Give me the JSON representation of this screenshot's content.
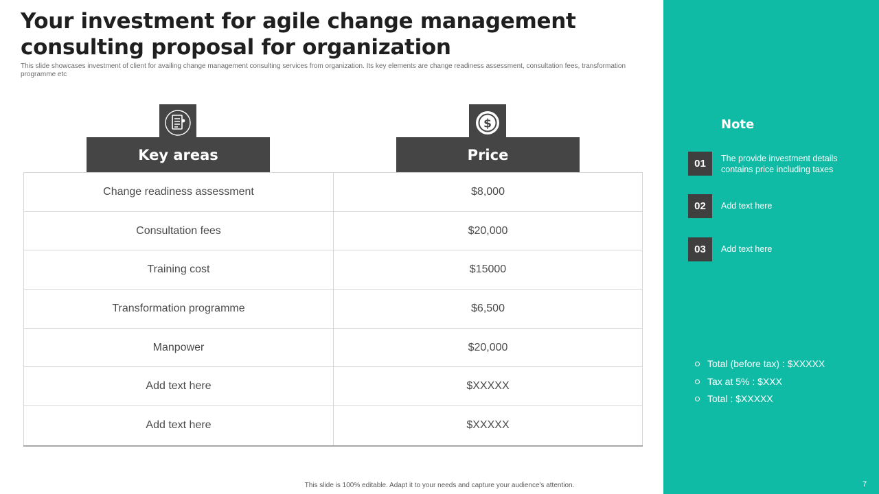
{
  "slide": {
    "title": "Your investment for agile change management consulting proposal for organization",
    "subtitle": "This slide showcases investment of client for availing change management  consulting services from organization. Its key elements  are change readiness assessment, consultation fees, transformation programme etc",
    "footer": "This slide is 100% editable. Adapt it to your needs and capture your audience's attention.",
    "page_number": "7"
  },
  "table": {
    "headers": [
      {
        "label": "Key areas",
        "icon": "checklist-document-icon"
      },
      {
        "label": "Price",
        "icon": "dollar-coin-icon"
      }
    ],
    "rows": [
      {
        "area": "Change readiness assessment",
        "price": "$8,000"
      },
      {
        "area": "Consultation fees",
        "price": "$20,000"
      },
      {
        "area": "Training cost",
        "price": "$15000"
      },
      {
        "area": "Transformation programme",
        "price": "$6,500"
      },
      {
        "area": "Manpower",
        "price": "$20,000"
      },
      {
        "area": "Add text here",
        "price": "$XXXXX"
      },
      {
        "area": "Add text here",
        "price": "$XXXXX"
      }
    ]
  },
  "notes": {
    "title": "Note",
    "items": [
      {
        "num": "01",
        "text": "The provide  investment details contains price including taxes"
      },
      {
        "num": "02",
        "text": "Add text here"
      },
      {
        "num": "03",
        "text": "Add text here"
      }
    ]
  },
  "totals": [
    "Total (before tax) : $XXXXX",
    "Tax at 5% : $XXX",
    "Total : $XXXXX"
  ],
  "colors": {
    "accent": "#0fbba4",
    "dark": "#454545"
  }
}
